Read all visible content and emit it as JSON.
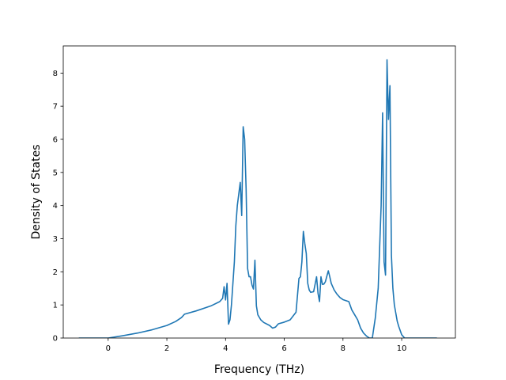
{
  "chart_data": {
    "type": "line",
    "title": "",
    "xlabel": "Frequency (THz)",
    "ylabel": "Density of States",
    "xlim": [
      -1.53,
      11.83
    ],
    "ylim": [
      0,
      8.82
    ],
    "xticks": [
      0,
      2,
      4,
      6,
      8,
      10
    ],
    "yticks": [
      0,
      1,
      2,
      3,
      4,
      5,
      6,
      7,
      8
    ],
    "grid": false,
    "legend": "none",
    "series": [
      {
        "color": "#1f77b4",
        "x": [
          -1.0,
          -0.5,
          0.0,
          0.5,
          1.0,
          1.5,
          2.0,
          2.3,
          2.5,
          2.6,
          3.0,
          3.5,
          3.8,
          3.9,
          3.95,
          4.0,
          4.05,
          4.1,
          4.15,
          4.2,
          4.3,
          4.35,
          4.4,
          4.5,
          4.55,
          4.6,
          4.65,
          4.7,
          4.75,
          4.8,
          4.85,
          4.9,
          4.95,
          5.0,
          5.05,
          5.1,
          5.2,
          5.3,
          5.5,
          5.6,
          5.7,
          5.8,
          6.0,
          6.2,
          6.4,
          6.5,
          6.55,
          6.6,
          6.65,
          6.7,
          6.75,
          6.8,
          6.85,
          6.9,
          7.0,
          7.1,
          7.15,
          7.2,
          7.25,
          7.3,
          7.35,
          7.4,
          7.5,
          7.55,
          7.6,
          7.7,
          7.8,
          7.9,
          8.0,
          8.1,
          8.2,
          8.3,
          8.4,
          8.5,
          8.6,
          8.7,
          8.8,
          8.9,
          9.0,
          9.1,
          9.2,
          9.3,
          9.35,
          9.4,
          9.45,
          9.5,
          9.55,
          9.6,
          9.65,
          9.7,
          9.75,
          9.8,
          9.85,
          9.9,
          10.0,
          10.1,
          10.2,
          10.3,
          10.4,
          11.2
        ],
        "y": [
          0.0,
          0.0,
          0.0,
          0.07,
          0.15,
          0.25,
          0.38,
          0.5,
          0.62,
          0.72,
          0.82,
          0.97,
          1.1,
          1.2,
          1.55,
          1.15,
          1.65,
          0.42,
          0.55,
          1.0,
          2.3,
          3.4,
          4.0,
          4.7,
          3.7,
          6.38,
          6.0,
          4.5,
          2.1,
          1.85,
          1.85,
          1.6,
          1.48,
          2.35,
          0.97,
          0.7,
          0.55,
          0.47,
          0.38,
          0.3,
          0.33,
          0.43,
          0.48,
          0.55,
          0.78,
          1.8,
          1.85,
          2.3,
          3.22,
          2.85,
          2.55,
          1.65,
          1.45,
          1.38,
          1.4,
          1.85,
          1.35,
          1.1,
          1.85,
          1.62,
          1.63,
          1.7,
          2.03,
          1.85,
          1.65,
          1.45,
          1.32,
          1.22,
          1.16,
          1.13,
          1.1,
          0.85,
          0.7,
          0.55,
          0.3,
          0.15,
          0.06,
          0.0,
          0.0,
          0.6,
          1.5,
          4.0,
          6.8,
          2.3,
          1.9,
          8.4,
          6.6,
          7.62,
          2.5,
          1.5,
          1.0,
          0.75,
          0.5,
          0.35,
          0.1,
          0.0,
          0.0,
          0.0,
          0.0,
          0.0
        ]
      }
    ]
  }
}
